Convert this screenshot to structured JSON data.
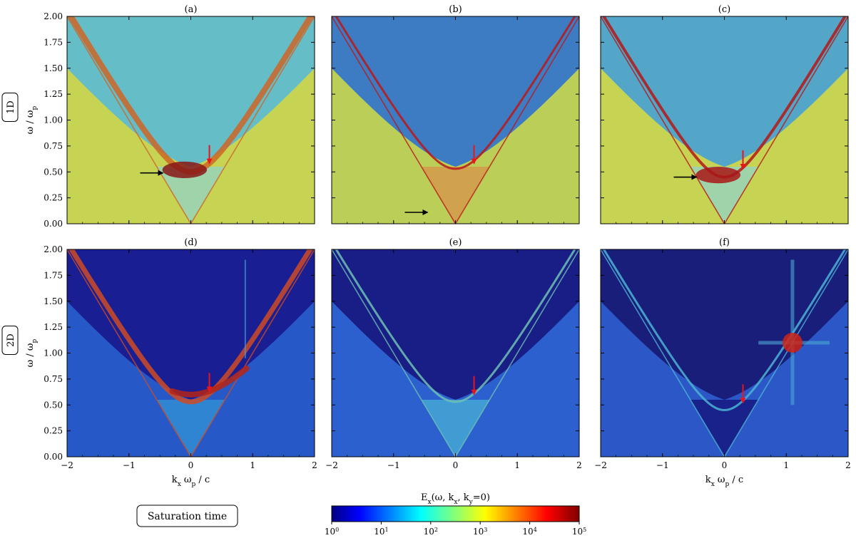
{
  "chart_data": {
    "type": "heatmap",
    "description_panels": 6,
    "rows": [
      {
        "tag": "1D",
        "panels": [
          "(a)",
          "(b)",
          "(c)"
        ]
      },
      {
        "tag": "2D",
        "panels": [
          "(d)",
          "(e)",
          "(f)"
        ]
      }
    ],
    "xlabel": "k_x ω_p / c",
    "xlabel_main": "k",
    "xlabel_sub": "x",
    "xlabel_mid": " ω",
    "xlabel_sub2": "p",
    "xlabel_tail": " / c",
    "ylabel_main": "ω / ω",
    "ylabel_sub": "p",
    "xlim": [
      -2,
      2
    ],
    "ylim": [
      0,
      2
    ],
    "xticks": [
      -2,
      -1,
      0,
      1,
      2
    ],
    "xtick_labels": [
      "−2",
      "−1",
      "0",
      "1",
      "2"
    ],
    "yticks": [
      0,
      0.25,
      0.5,
      0.75,
      1.0,
      1.25,
      1.5,
      1.75,
      2.0
    ],
    "ytick_labels": [
      "0.00",
      "0.25",
      "0.50",
      "0.75",
      "1.00",
      "1.25",
      "1.50",
      "1.75",
      "2.00"
    ],
    "colorbar": {
      "label": "E_x(ω, k_x, k_y=0)",
      "label_main": "E",
      "label_sub": "x",
      "label_mid": "(ω, k",
      "label_sub2": "x",
      "label_mid2": ", k",
      "label_sub3": "y",
      "label_tail": "=0)",
      "scale": "log",
      "range": [
        1,
        100000
      ],
      "ticks": [
        {
          "base": "10",
          "exp": "0"
        },
        {
          "base": "10",
          "exp": "1"
        },
        {
          "base": "10",
          "exp": "2"
        },
        {
          "base": "10",
          "exp": "3"
        },
        {
          "base": "10",
          "exp": "4"
        },
        {
          "base": "10",
          "exp": "5"
        }
      ],
      "colormap": "jet"
    },
    "legend_box": "Saturation time",
    "annotations": {
      "red_arrows": [
        {
          "panel": "(a)",
          "k": 0.3,
          "w": 0.58
        },
        {
          "panel": "(b)",
          "k": 0.3,
          "w": 0.58
        },
        {
          "panel": "(c)",
          "k": 0.3,
          "w": 0.53
        },
        {
          "panel": "(d)",
          "k": 0.3,
          "w": 0.63
        },
        {
          "panel": "(e)",
          "k": 0.3,
          "w": 0.6
        },
        {
          "panel": "(f)",
          "k": 0.3,
          "w": 0.52
        }
      ],
      "black_arrows": [
        {
          "panel": "(a)",
          "k_tip": -0.45,
          "w": 0.49
        },
        {
          "panel": "(b)",
          "k_tip": -0.45,
          "w": 0.11
        },
        {
          "panel": "(c)",
          "k_tip": -0.45,
          "w": 0.45
        }
      ]
    },
    "colors": {
      "jet_dark_blue": "#00007f",
      "jet_blue": "#0000ff",
      "jet_cyan": "#00ffff",
      "jet_yellow": "#ffff00",
      "jet_red": "#ff0000",
      "jet_dark_red": "#7f0000",
      "arrow_red": "#e8141e",
      "arrow_black": "#000000"
    }
  }
}
